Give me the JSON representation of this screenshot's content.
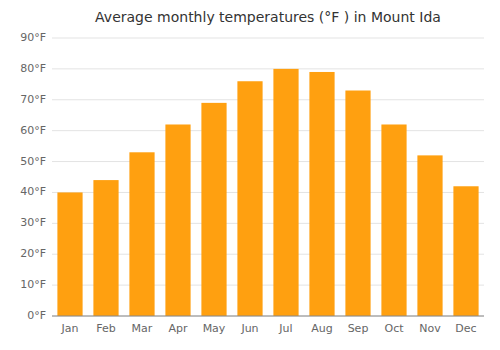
{
  "chart_data": {
    "type": "bar",
    "title": "Average monthly temperatures (°F ) in Mount Ida",
    "categories": [
      "Jan",
      "Feb",
      "Mar",
      "Apr",
      "May",
      "Jun",
      "Jul",
      "Aug",
      "Sep",
      "Oct",
      "Nov",
      "Dec"
    ],
    "values": [
      40,
      44,
      53,
      62,
      69,
      76,
      80,
      79,
      73,
      62,
      52,
      42
    ],
    "color": "#FFA010",
    "ylim": [
      0,
      90
    ],
    "yticks": [
      {
        "value": 0,
        "label": "0°F"
      },
      {
        "value": 10,
        "label": "10°F"
      },
      {
        "value": 20,
        "label": "20°F"
      },
      {
        "value": 30,
        "label": "30°F"
      },
      {
        "value": 40,
        "label": "40°F"
      },
      {
        "value": 50,
        "label": "50°F"
      },
      {
        "value": 60,
        "label": "60°F"
      },
      {
        "value": 70,
        "label": "70°F"
      },
      {
        "value": 80,
        "label": "80°F"
      },
      {
        "value": 90,
        "label": "90°F"
      }
    ],
    "grid": true
  }
}
